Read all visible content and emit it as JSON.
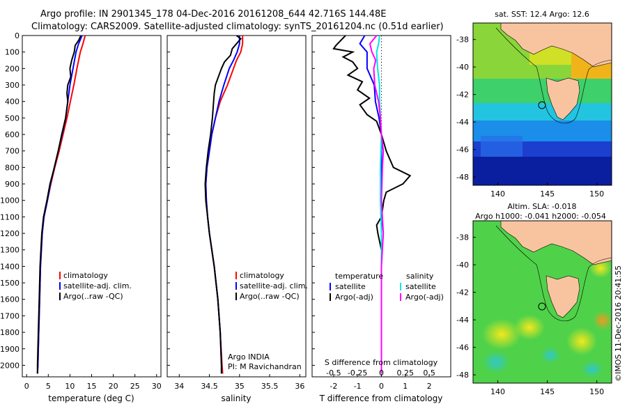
{
  "header": {
    "line1": "Argo profile: IN 2901345_178 04-Dec-2016 20161208_644 42.716S 144.48E",
    "line2": "Climatology: CARS2009. Satellite-adjusted climatology: synTS_20161204.nc (0.51d earlier)"
  },
  "side_label": "©IMOS 11-Dec-2016 20:41:55",
  "colors": {
    "climatology": "#ff0000",
    "satellite": "#0000ff",
    "argo": "#000000",
    "sal_satellite": "#00e5e5",
    "sal_argo": "#ff00ff",
    "land": "#f8c4a0",
    "frame": "#000000"
  },
  "chart_data": [
    {
      "type": "line",
      "title": "",
      "xlabel": "temperature (deg C)",
      "ylabel": "",
      "xlim": [
        -1,
        31
      ],
      "ylim": [
        2070,
        0
      ],
      "xticks": [
        0,
        5,
        10,
        15,
        20,
        25,
        30
      ],
      "yticks": [
        0,
        100,
        200,
        300,
        400,
        500,
        600,
        700,
        800,
        900,
        1000,
        1100,
        1200,
        1300,
        1400,
        1500,
        1600,
        1700,
        1800,
        1900,
        2000
      ],
      "legend": [
        "climatology",
        "satellite-adj. clim.",
        "Argo(..raw -QC)"
      ],
      "legend_placement": "center-right",
      "series": [
        {
          "name": "climatology",
          "color": "#ff0000",
          "depth": [
            0,
            50,
            100,
            200,
            300,
            400,
            500,
            600,
            700,
            800,
            900,
            1000,
            1100,
            1200,
            1400,
            1600,
            1800,
            2000,
            2050
          ],
          "values": [
            13.5,
            13.0,
            12.4,
            11.6,
            10.9,
            10.1,
            9.3,
            8.4,
            7.5,
            6.5,
            5.6,
            4.8,
            4.0,
            3.6,
            3.2,
            3.0,
            2.8,
            2.6,
            2.5
          ]
        },
        {
          "name": "satellite-adj. clim.",
          "color": "#0000ff",
          "depth": [
            0,
            50,
            100,
            200,
            300,
            400,
            500,
            600,
            700,
            800,
            900,
            1000,
            1100,
            1200,
            1400,
            1600,
            1800,
            2000,
            2050
          ],
          "values": [
            12.8,
            12.0,
            11.4,
            10.7,
            10.0,
            9.5,
            9.0,
            8.2,
            7.3,
            6.4,
            5.5,
            4.8,
            4.0,
            3.6,
            3.2,
            3.0,
            2.8,
            2.6,
            2.5
          ]
        },
        {
          "name": "Argo(..raw -QC)",
          "color": "#000000",
          "depth": [
            0,
            30,
            60,
            100,
            150,
            200,
            250,
            300,
            350,
            400,
            500,
            600,
            700,
            800,
            900,
            1000,
            1100,
            1200,
            1400,
            1600,
            1800,
            2000,
            2050
          ],
          "values": [
            12.5,
            12.0,
            11.2,
            11.0,
            10.4,
            10.0,
            10.2,
            9.5,
            9.3,
            9.5,
            9.0,
            8.1,
            7.3,
            6.4,
            5.4,
            4.7,
            3.9,
            3.5,
            3.1,
            2.9,
            2.7,
            2.5,
            2.5
          ]
        }
      ]
    },
    {
      "type": "line",
      "title": "",
      "xlabel": "salinity",
      "ylabel": "",
      "xlim": [
        33.8,
        36.1
      ],
      "ylim": [
        2070,
        0
      ],
      "xticks": [
        34,
        34.5,
        35,
        35.5,
        36
      ],
      "legend": [
        "climatology",
        "satellite-adj. clim.",
        "Argo(..raw -QC)"
      ],
      "legend_placement": "center-right",
      "annotation": [
        "Argo INDIA",
        "PI: M Ravichandran"
      ],
      "series": [
        {
          "name": "climatology",
          "color": "#ff0000",
          "depth": [
            0,
            50,
            100,
            150,
            200,
            300,
            400,
            500,
            600,
            700,
            800,
            900,
            1000,
            1100,
            1200,
            1400,
            1600,
            1800,
            2000,
            2050
          ],
          "values": [
            35.05,
            35.05,
            35.02,
            34.95,
            34.9,
            34.8,
            34.68,
            34.6,
            34.54,
            34.5,
            34.46,
            34.44,
            34.45,
            34.47,
            34.5,
            34.58,
            34.64,
            34.68,
            34.71,
            34.72
          ]
        },
        {
          "name": "satellite-adj. clim.",
          "color": "#0000ff",
          "depth": [
            0,
            50,
            100,
            150,
            200,
            300,
            400,
            500,
            600,
            700,
            800,
            900,
            1000,
            1100,
            1200,
            1400,
            1600,
            1800,
            2000,
            2050
          ],
          "values": [
            35.0,
            35.0,
            34.96,
            34.9,
            34.83,
            34.74,
            34.66,
            34.6,
            34.54,
            34.5,
            34.46,
            34.44,
            34.45,
            34.47,
            34.5,
            34.58,
            34.64,
            34.68,
            34.7,
            34.7
          ]
        },
        {
          "name": "Argo(..raw -QC)",
          "color": "#000000",
          "depth": [
            0,
            20,
            50,
            80,
            120,
            160,
            200,
            250,
            300,
            350,
            400,
            500,
            600,
            700,
            800,
            900,
            1000,
            1100,
            1200,
            1400,
            1600,
            1800,
            2000,
            2050
          ],
          "values": [
            34.95,
            35.02,
            34.95,
            34.88,
            34.85,
            34.75,
            34.7,
            34.65,
            34.6,
            34.58,
            34.57,
            34.55,
            34.52,
            34.48,
            34.45,
            34.43,
            34.44,
            34.47,
            34.5,
            34.58,
            34.64,
            34.68,
            34.7,
            34.7
          ]
        }
      ]
    },
    {
      "type": "line",
      "title": "",
      "xlabel": "T difference from climatology",
      "xlabel_top": "S difference from climatology",
      "ylabel": "",
      "xlim": [
        -2.9,
        2.9
      ],
      "ylim": [
        2070,
        0
      ],
      "xticks": [
        -2,
        -1,
        0,
        1,
        2
      ],
      "s_ticks": [
        "-0.5",
        "-0.25",
        "0",
        "0.25",
        "0.5"
      ],
      "legend_temperature": {
        "heading": "temperature",
        "items": [
          "satellite",
          "Argo(-adj)"
        ]
      },
      "legend_salinity": {
        "heading": "salinity",
        "items": [
          "satellite",
          "Argo(-adj)"
        ]
      },
      "series": [
        {
          "name": "satellite",
          "color": "#0000ff",
          "depth": [
            0,
            50,
            100,
            200,
            300,
            400,
            500,
            600,
            800,
            1000,
            1200,
            1500,
            2000,
            2050
          ],
          "values": [
            -0.7,
            -0.9,
            -0.6,
            -0.6,
            -0.3,
            -0.25,
            -0.1,
            0,
            0,
            0,
            0,
            0,
            0,
            0
          ]
        },
        {
          "name": "Argo(-adj)",
          "color": "#000000",
          "depth": [
            0,
            30,
            60,
            80,
            100,
            130,
            160,
            200,
            240,
            280,
            330,
            380,
            420,
            480,
            520,
            560,
            600,
            700,
            800,
            850,
            900,
            950,
            1000,
            1100,
            1150,
            1200,
            1300,
            1500,
            2000,
            2050
          ],
          "values": [
            -1.5,
            -1.7,
            -1.9,
            -2.0,
            -1.2,
            -1.6,
            -1.2,
            -1.0,
            -1.4,
            -0.8,
            -1.0,
            -0.5,
            -0.9,
            -0.6,
            -0.2,
            -0.1,
            0,
            0.2,
            0.5,
            1.2,
            0.9,
            0.2,
            0.1,
            0,
            -0.2,
            -0.15,
            0,
            0,
            0,
            0
          ]
        },
        {
          "name": "satellite",
          "color": "#00e5e5",
          "depth": [
            0,
            50,
            100,
            200,
            300,
            400,
            500,
            600,
            800,
            1000,
            1200,
            1400,
            1600,
            1800,
            2000,
            2050
          ],
          "values": [
            -0.02,
            -0.03,
            -0.05,
            -0.04,
            -0.02,
            -0.02,
            -0.01,
            0,
            -0.01,
            -0.01,
            0,
            0,
            0,
            0,
            0,
            0
          ]
        },
        {
          "name": "Argo(-adj)",
          "color": "#ff00ff",
          "depth": [
            0,
            50,
            100,
            150,
            200,
            300,
            400,
            500,
            600,
            700,
            800,
            1000,
            1200,
            1400,
            2000,
            2050
          ],
          "values": [
            -0.05,
            -0.12,
            -0.1,
            -0.06,
            -0.08,
            -0.07,
            -0.03,
            -0.01,
            0,
            0.02,
            0.01,
            0,
            0.02,
            0,
            0,
            0
          ]
        }
      ]
    },
    {
      "type": "heatmap",
      "title": "sat. SST: 12.4  Argo: 12.6",
      "xticks": [
        140,
        145,
        150
      ],
      "yticks": [
        -38,
        -40,
        -42,
        -44,
        -46,
        -48
      ],
      "xlim": [
        137.5,
        151.5
      ],
      "ylim": [
        -48.6,
        -36.8
      ],
      "marker_lon": 144.48,
      "marker_lat": -42.716
    },
    {
      "type": "heatmap",
      "title": "Altim. SLA: -0.018",
      "subtitle": "Argo h1000: -0.041 h2000: -0.054",
      "xticks": [
        140,
        145,
        150
      ],
      "yticks": [
        -38,
        -40,
        -42,
        -44,
        -46,
        -48
      ],
      "xlim": [
        137.5,
        151.5
      ],
      "ylim": [
        -48.6,
        -36.8
      ],
      "marker_lon": 144.48,
      "marker_lat": -42.716
    }
  ]
}
